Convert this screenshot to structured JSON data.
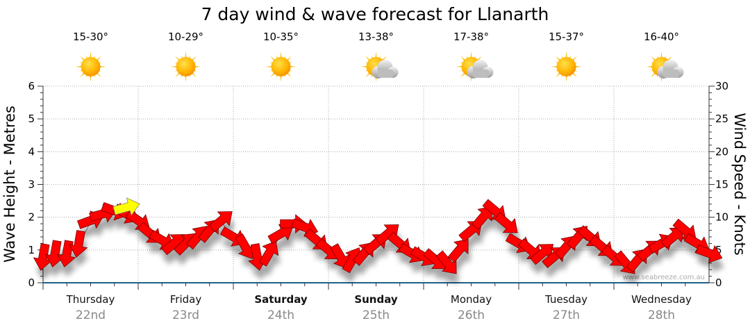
{
  "chart_data": {
    "type": "scatter",
    "title": "7 day wind & wave forecast for Llanarth",
    "ylabel_left": "Wave Height - Metres",
    "ylabel_right": "Wind Speed - Knots",
    "ylim_left": [
      0,
      6
    ],
    "ylim_right": [
      0,
      30
    ],
    "yticks_left": [
      "0",
      "1",
      "2",
      "3",
      "4",
      "5",
      "6"
    ],
    "yticks_right": [
      "0",
      "5",
      "10",
      "15",
      "20",
      "25",
      "30"
    ],
    "grid": true,
    "days": [
      {
        "name": "Thursday",
        "date": "22nd",
        "temp": "15-30°",
        "icon": "sun-icon",
        "bold": false
      },
      {
        "name": "Friday",
        "date": "23rd",
        "temp": "10-29°",
        "icon": "sun-icon",
        "bold": false
      },
      {
        "name": "Saturday",
        "date": "24th",
        "temp": "10-35°",
        "icon": "sun-icon",
        "bold": true
      },
      {
        "name": "Sunday",
        "date": "25th",
        "temp": "13-38°",
        "icon": "partly-cloudy-icon",
        "bold": true
      },
      {
        "name": "Monday",
        "date": "26th",
        "temp": "17-38°",
        "icon": "partly-cloudy-icon",
        "bold": false
      },
      {
        "name": "Tuesday",
        "date": "27th",
        "temp": "15-37°",
        "icon": "sun-icon",
        "bold": false
      },
      {
        "name": "Wednesday",
        "date": "28th",
        "temp": "16-40°",
        "icon": "partly-cloudy-icon",
        "bold": false
      }
    ],
    "wind_series": {
      "name": "Wind",
      "unit": "knots",
      "color": "#ff0000",
      "hours_step": 3,
      "speed": [
        4,
        4.5,
        4.5,
        6,
        9.5,
        10.5,
        11,
        10.5,
        9.5,
        7.5,
        6.5,
        6,
        6,
        7,
        8,
        9.5,
        7,
        5.5,
        4,
        4.5,
        7.5,
        9,
        8.5,
        6.5,
        5,
        4,
        3.5,
        4.5,
        6,
        7.5,
        6,
        4.5,
        4,
        3.5,
        3,
        5,
        8,
        10,
        11,
        9,
        6,
        5,
        4.5,
        4,
        5.5,
        7,
        7,
        5.5,
        4,
        3,
        3.5,
        5,
        6,
        7,
        8,
        6,
        4.5
      ],
      "direction_deg": [
        100,
        100,
        100,
        100,
        -20,
        -15,
        20,
        30,
        35,
        40,
        30,
        -40,
        -45,
        -50,
        -50,
        -40,
        30,
        60,
        80,
        -60,
        -30,
        0,
        20,
        40,
        40,
        60,
        -60,
        -50,
        -40,
        -40,
        40,
        30,
        30,
        40,
        50,
        -50,
        -40,
        -50,
        40,
        40,
        30,
        40,
        -40,
        -40,
        -50,
        -50,
        40,
        40,
        40,
        50,
        -50,
        -40,
        -30,
        -40,
        40,
        30,
        20
      ]
    },
    "wave_series": {
      "name": "Wave",
      "unit": "metres",
      "color": "#ffff00",
      "points": [
        {
          "hour": 21,
          "height": 2.3,
          "direction_deg": -15
        }
      ]
    },
    "watermark": "www.seabreeze.com.au"
  }
}
